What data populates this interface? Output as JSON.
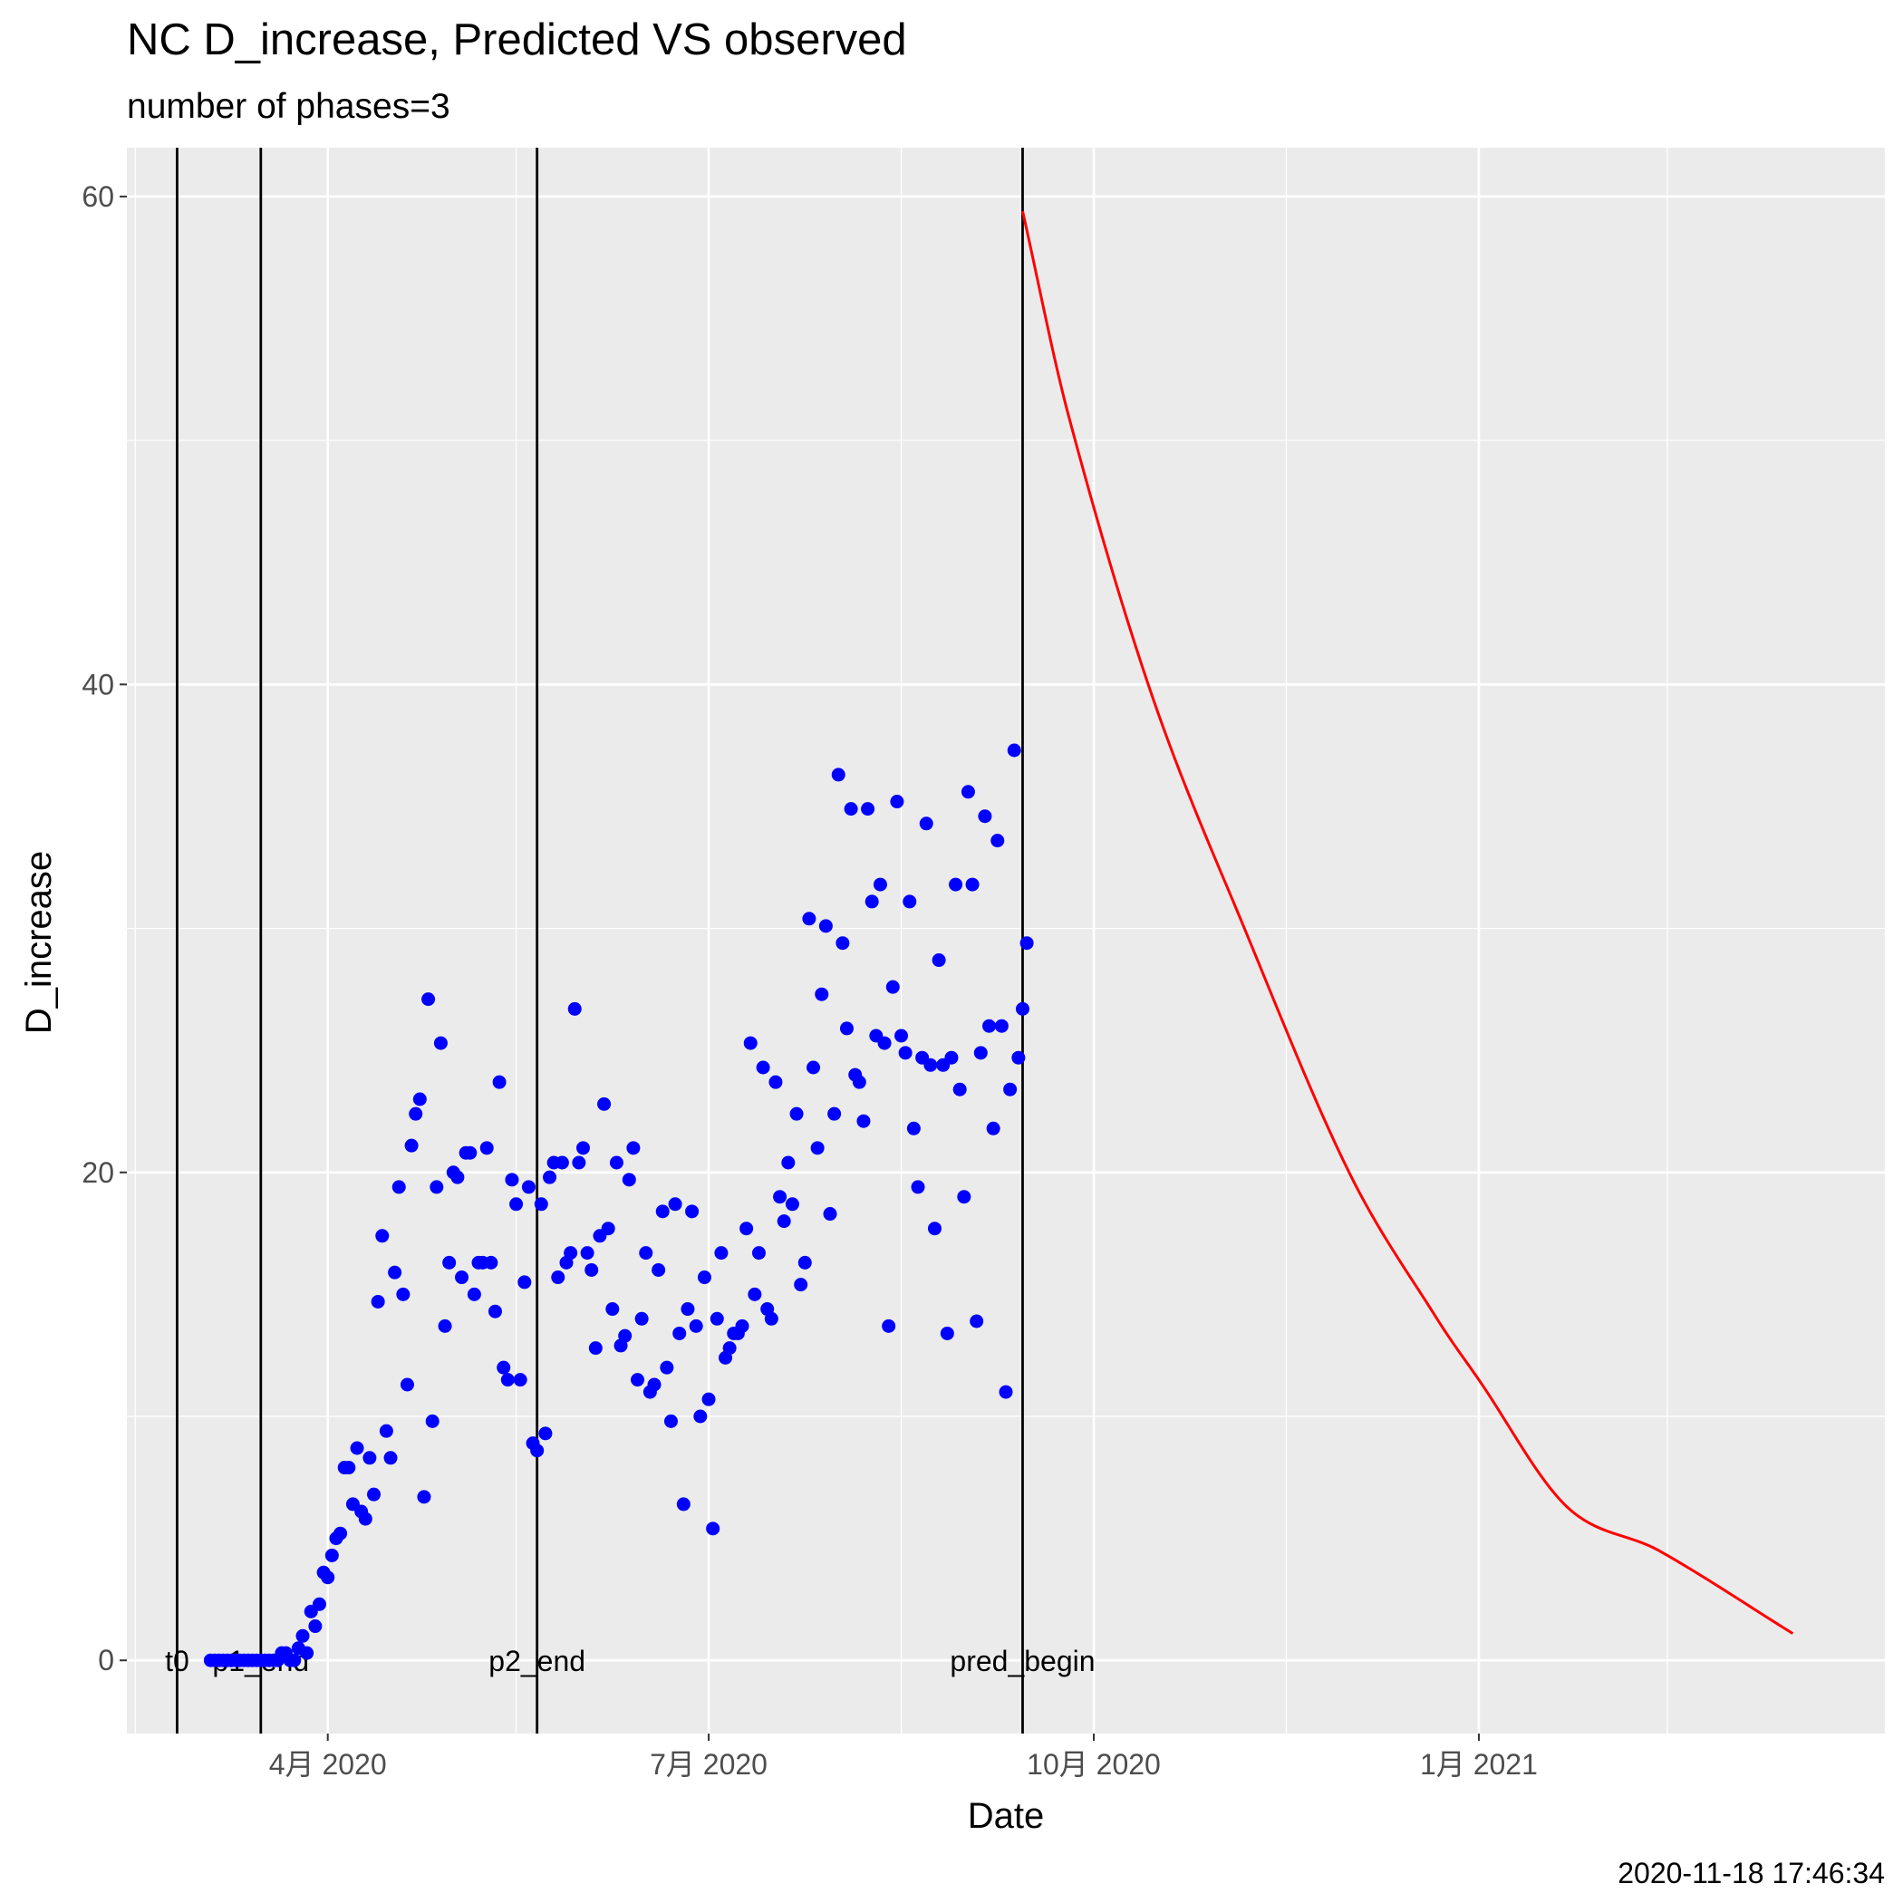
{
  "chart_data": {
    "type": "scatter",
    "title": "NC D_increase, Predicted VS observed",
    "subtitle": "number of phases=3",
    "xlabel": "Date",
    "ylabel": "D_increase",
    "footer": "2020-11-18 17:46:34",
    "xlim": [
      "2020-02-13",
      "2021-04-08"
    ],
    "ylim": [
      -3,
      62
    ],
    "x_ticks": [
      {
        "date": "2020-04-01",
        "label": "4月 2020"
      },
      {
        "date": "2020-07-01",
        "label": "7月 2020"
      },
      {
        "date": "2020-10-01",
        "label": "10月 2020"
      },
      {
        "date": "2021-01-01",
        "label": "1月 2021"
      }
    ],
    "x_minor_ticks": [
      "2020-02-15",
      "2020-05-16",
      "2020-08-16",
      "2020-11-16",
      "2021-02-15"
    ],
    "y_ticks": [
      0,
      20,
      40,
      60
    ],
    "y_minor_ticks": [
      10,
      30,
      50
    ],
    "grid": true,
    "background": "#ebebeb",
    "colors": {
      "observed": "#0000ff",
      "predicted": "#ff0000",
      "vline": "#000000"
    },
    "vlines": [
      {
        "date": "2020-02-25",
        "label": "t0"
      },
      {
        "date": "2020-03-16",
        "label": "p1_end"
      },
      {
        "date": "2020-05-21",
        "label": "p2_end"
      },
      {
        "date": "2020-09-14",
        "label": "pred_begin"
      }
    ],
    "observed": {
      "start_date": "2020-03-04",
      "values": [
        0,
        0,
        0,
        0,
        0,
        0,
        0,
        0,
        0,
        0,
        0,
        0,
        0,
        0,
        0,
        0,
        0,
        0.3,
        0.3,
        0,
        0,
        0.5,
        1,
        0.3,
        2,
        1.4,
        2.3,
        3.6,
        3.4,
        4.3,
        5,
        5.2,
        7.9,
        7.9,
        6.4,
        8.7,
        6.1,
        5.8,
        8.3,
        6.8,
        14.7,
        17.4,
        9.4,
        8.3,
        15.9,
        19.4,
        15,
        11.3,
        21.1,
        22.4,
        23,
        6.7,
        27.1,
        9.8,
        19.4,
        25.3,
        13.7,
        16.3,
        20,
        19.8,
        15.7,
        20.8,
        20.8,
        15,
        16.3,
        16.3,
        21,
        16.3,
        14.3,
        23.7,
        12,
        11.5,
        19.7,
        18.7,
        11.5,
        15.5,
        19.4,
        8.9,
        8.6,
        18.7,
        9.3,
        19.8,
        20.4,
        15.7,
        20.4,
        16.3,
        16.7,
        26.7,
        20.4,
        21,
        16.7,
        16,
        12.8,
        17.4,
        22.8,
        17.7,
        14.4,
        20.4,
        12.9,
        13.3,
        19.7,
        21,
        11.5,
        14,
        16.7,
        11,
        11.3,
        16,
        18.4,
        12,
        9.8,
        18.7,
        13.4,
        6.4,
        14.4,
        18.4,
        13.7,
        10,
        15.7,
        10.7,
        5.4,
        14,
        16.7,
        12.4,
        12.8,
        13.4,
        13.4,
        13.7,
        17.7,
        25.3,
        15,
        16.7,
        24.3,
        14.4,
        14,
        23.7,
        19,
        18,
        20.4,
        18.7,
        22.4,
        15.4,
        16.3,
        30.4,
        24.3,
        21,
        27.3,
        30.1,
        18.3,
        22.4,
        36.3,
        29.4,
        25.9,
        34.9,
        24,
        23.7,
        22.1,
        34.9,
        31.1,
        25.6,
        31.8,
        25.3,
        13.7,
        27.6,
        35.2,
        25.6,
        24.9,
        31.1,
        21.8,
        19.4,
        24.7,
        34.3,
        24.4,
        17.7,
        28.7,
        24.4,
        13.4,
        24.7,
        31.8,
        23.4,
        19,
        35.6,
        31.8,
        13.9,
        24.9,
        34.6,
        26,
        21.8,
        33.6,
        26,
        11,
        23.4,
        37.3,
        24.7,
        26.7,
        29.4
      ]
    },
    "predicted": {
      "x": [
        "2020-09-14",
        "2020-09-25",
        "2020-10-15",
        "2020-11-06",
        "2020-12-01",
        "2020-12-22",
        "2021-01-01",
        "2021-01-22",
        "2021-02-13",
        "2021-03-17"
      ],
      "y": [
        59.4,
        51,
        39.5,
        30,
        20,
        14,
        11.5,
        6.3,
        4.5,
        1.1
      ]
    }
  }
}
